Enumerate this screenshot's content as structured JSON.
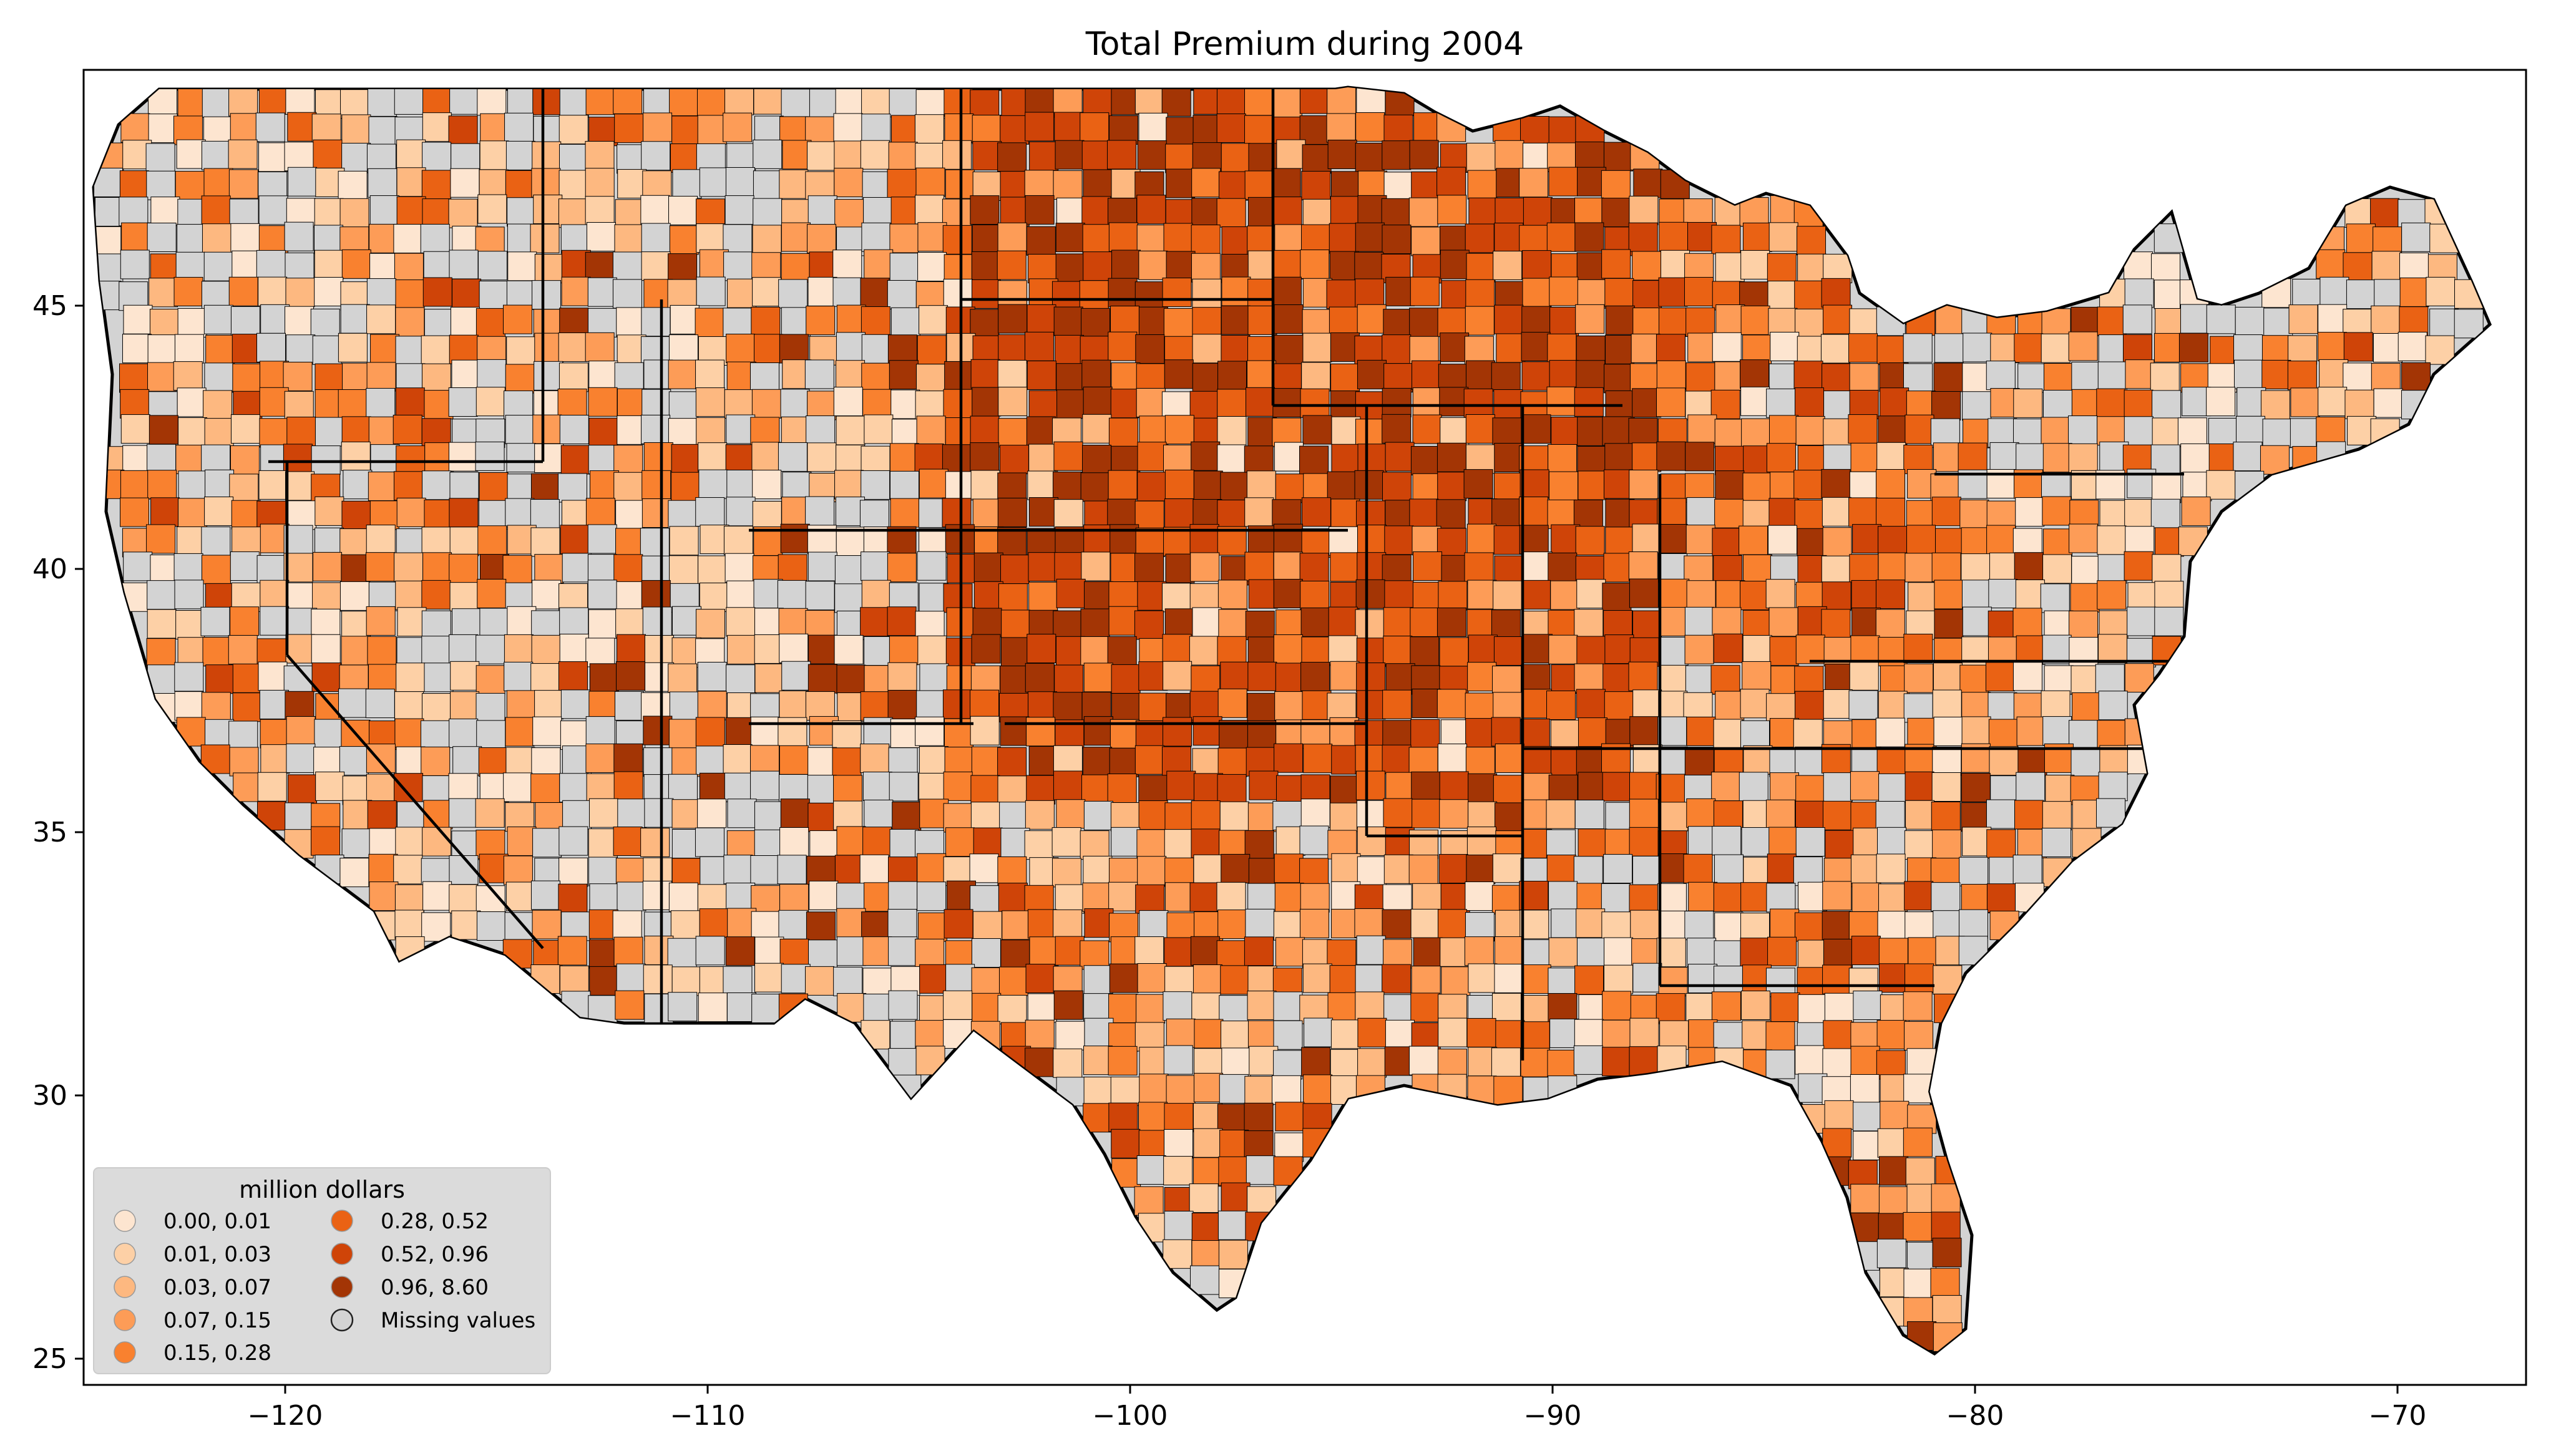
{
  "title": "Total  Premium during 2004",
  "axes": {
    "x_ticks": [
      "−120",
      "−110",
      "−100",
      "−90",
      "−80",
      "−70"
    ],
    "y_ticks": [
      "25",
      "30",
      "35",
      "40",
      "45"
    ]
  },
  "legend": {
    "title": "million dollars",
    "items": [
      {
        "label": "0.00, 0.01",
        "color": "#fde5d0"
      },
      {
        "label": "0.01, 0.03",
        "color": "#fdd0a6"
      },
      {
        "label": "0.03, 0.07",
        "color": "#fdb880"
      },
      {
        "label": "0.07, 0.15",
        "color": "#fd9c57"
      },
      {
        "label": "0.15, 0.28",
        "color": "#f9812f"
      },
      {
        "label": "0.28, 0.52",
        "color": "#ea6214"
      },
      {
        "label": "0.52, 0.96",
        "color": "#cf4408"
      },
      {
        "label": "0.96, 8.60",
        "color": "#a33505"
      },
      {
        "label": "Missing values",
        "color": "#d3d3d3"
      }
    ]
  },
  "chart_data": {
    "type": "choropleth",
    "title": "Total  Premium during 2004",
    "x_range": [
      -125,
      -66.5
    ],
    "y_range": [
      24.5,
      49.5
    ],
    "x_ticks": [
      -120,
      -110,
      -100,
      -90,
      -80,
      -70
    ],
    "y_ticks": [
      25,
      30,
      35,
      40,
      45
    ],
    "colorbar_label": "million dollars",
    "bins": [
      [
        0.0,
        0.01
      ],
      [
        0.01,
        0.03
      ],
      [
        0.03,
        0.07
      ],
      [
        0.07,
        0.15
      ],
      [
        0.15,
        0.28
      ],
      [
        0.28,
        0.52
      ],
      [
        0.52,
        0.96
      ],
      [
        0.96,
        8.6
      ]
    ],
    "missing_label": "Missing values",
    "legend_placement": "lower-left"
  },
  "colors": {
    "missing": "#d3d3d3",
    "border": "#000000",
    "legend_bg": "#d9d9d9"
  }
}
